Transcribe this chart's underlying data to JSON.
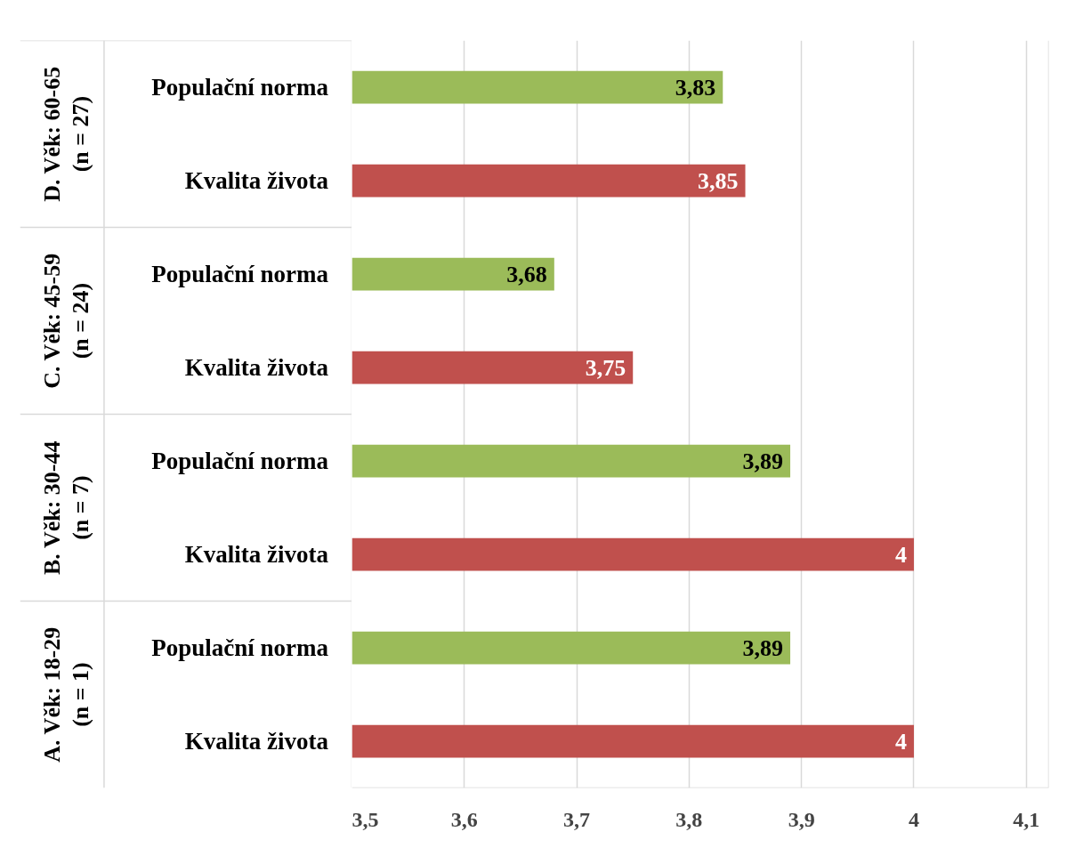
{
  "chart_data": {
    "type": "bar",
    "orientation": "horizontal",
    "categories": [
      "Populační norma",
      "Kvalita života",
      "Populační norma",
      "Kvalita života",
      "Populační norma",
      "Kvalita života",
      "Populační norma",
      "Kvalita života"
    ],
    "values": [
      3.83,
      3.85,
      3.68,
      3.75,
      3.89,
      4,
      3.89,
      4
    ],
    "colors": [
      "#9bbb59",
      "#c0504d",
      "#9bbb59",
      "#c0504d",
      "#9bbb59",
      "#c0504d",
      "#9bbb59",
      "#c0504d"
    ],
    "value_labels": [
      "3,83",
      "3,85",
      "3,68",
      "3,75",
      "3,89",
      "4",
      "3,89",
      "4"
    ],
    "annotations": [
      "D. Věk: 60-65\n(n = 27)",
      "C. Věk: 45-59\n(n = 24)",
      "B. Věk: 30-44\n(n = 7)",
      "A. Věk: 18-29\n(n = 1)"
    ],
    "xlim": [
      3.5,
      4.12
    ],
    "xticks": [
      {
        "value": 3.5,
        "label": "3,5"
      },
      {
        "value": 3.6,
        "label": "3,6"
      },
      {
        "value": 3.7,
        "label": "3,7"
      },
      {
        "value": 3.8,
        "label": "3,8"
      },
      {
        "value": 3.9,
        "label": "3,9"
      },
      {
        "value": 4,
        "label": "4"
      },
      {
        "value": 4.1,
        "label": "4,1"
      }
    ],
    "grid": "x"
  }
}
